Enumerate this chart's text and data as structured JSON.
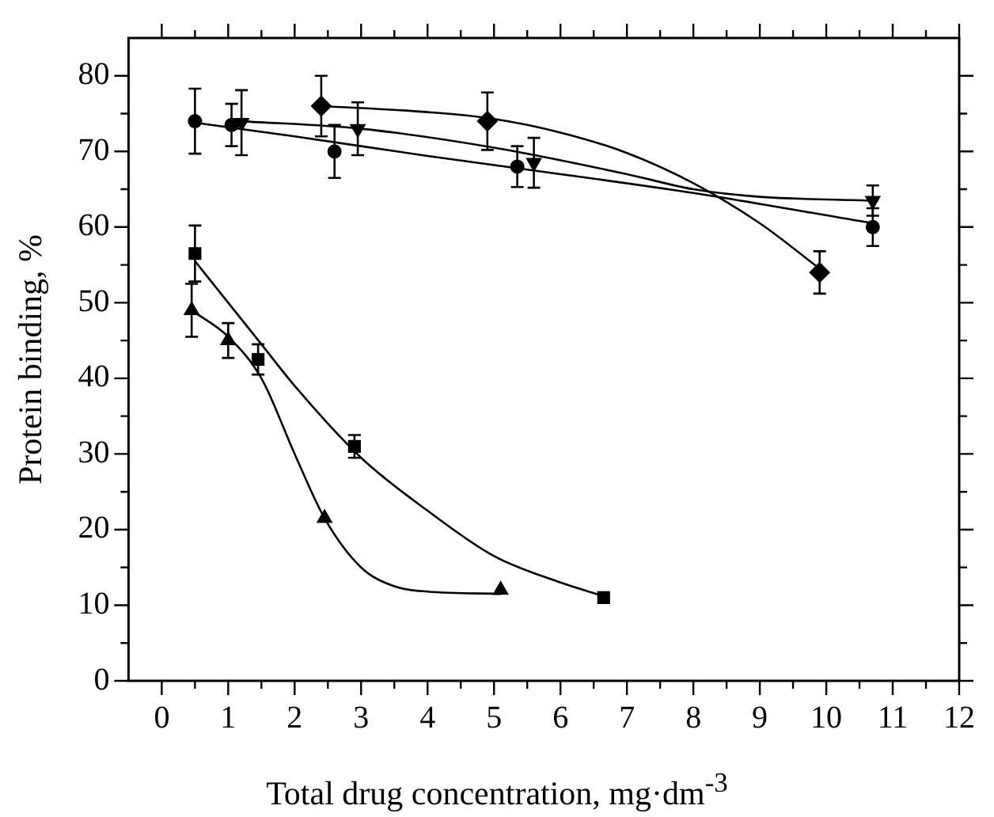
{
  "chart_data": {
    "type": "scatter",
    "xlabel": "Total drug concentration, mg·dm$^{-3}$",
    "ylabel": "Protein binding, %",
    "xlim": [
      -0.5,
      12
    ],
    "ylim": [
      0,
      85
    ],
    "xticks": [
      0,
      {
        "value": 0.5,
        "label": null
      },
      1,
      {
        "value": 1.5,
        "label": null
      },
      2,
      {
        "value": 2.5,
        "label": null
      },
      3,
      {
        "value": 3.5,
        "label": null
      },
      4,
      {
        "value": 4.5,
        "label": null
      },
      5,
      {
        "value": 5.5,
        "label": null
      },
      6,
      {
        "value": 6.5,
        "label": null
      },
      7,
      {
        "value": 7.5,
        "label": null
      },
      8,
      {
        "value": 8.5,
        "label": null
      },
      9,
      {
        "value": 9.5,
        "label": null
      },
      10,
      {
        "value": 10.5,
        "label": null
      },
      11,
      {
        "value": 11.5,
        "label": null
      },
      12
    ],
    "yticks": [
      0,
      {
        "value": 5,
        "label": null
      },
      10,
      {
        "value": 15,
        "label": null
      },
      20,
      {
        "value": 25,
        "label": null
      },
      30,
      {
        "value": 35,
        "label": null
      },
      40,
      {
        "value": 45,
        "label": null
      },
      50,
      {
        "value": 55,
        "label": null
      },
      60,
      {
        "value": 65,
        "label": null
      },
      70,
      {
        "value": 75,
        "label": null
      },
      80
    ],
    "grid": false,
    "legend": false,
    "series": [
      {
        "type": "scatter",
        "marker": "circle",
        "color": "#000000",
        "x": [
          0.5,
          1.05,
          2.6,
          5.35,
          10.7
        ],
        "values": [
          74,
          73.5,
          70,
          68,
          60
        ],
        "errors": [
          4.3,
          2.8,
          3.5,
          2.7,
          2.5
        ]
      },
      {
        "type": "scatter",
        "marker": "triangle-down",
        "color": "#000000",
        "x": [
          1.2,
          2.95,
          5.6,
          10.7
        ],
        "values": [
          73.8,
          73,
          68.5,
          63.5
        ],
        "errors": [
          4.3,
          3.5,
          3.3,
          2
        ]
      },
      {
        "type": "scatter",
        "marker": "diamond",
        "color": "#000000",
        "x": [
          2.4,
          4.9,
          9.9
        ],
        "values": [
          76,
          74,
          54
        ],
        "errors": [
          4,
          3.8,
          2.8
        ]
      },
      {
        "type": "scatter",
        "marker": "square",
        "color": "#000000",
        "x": [
          0.5,
          1.45,
          2.9,
          6.65
        ],
        "values": [
          56.5,
          42.5,
          31,
          11
        ],
        "errors": [
          3.7,
          2,
          1.5,
          null
        ]
      },
      {
        "type": "scatter",
        "marker": "triangle",
        "color": "#000000",
        "x": [
          0.45,
          1.0,
          2.45,
          5.1
        ],
        "values": [
          49,
          45,
          21.5,
          12
        ],
        "errors": [
          3.5,
          2.3,
          null,
          null
        ]
      },
      {
        "type": "line",
        "marker": "none",
        "color": "#000000",
        "x": [
          0.5,
          2,
          4,
          6,
          8,
          10.7
        ],
        "values": [
          73.8,
          72,
          69.4,
          67,
          64.5,
          60.5
        ]
      },
      {
        "type": "line",
        "marker": "none",
        "color": "#000000",
        "x": [
          1.2,
          3,
          5,
          7,
          8,
          9,
          10.7
        ],
        "values": [
          74,
          73,
          70.5,
          67,
          65,
          64,
          63.5
        ]
      },
      {
        "type": "line",
        "marker": "none",
        "color": "#000000",
        "x": [
          2.4,
          4,
          5,
          6,
          7,
          8,
          9,
          9.9
        ],
        "values": [
          76,
          75.2,
          74.3,
          72.5,
          69.8,
          65.8,
          60.5,
          54.5
        ]
      },
      {
        "type": "line",
        "marker": "none",
        "color": "#000000",
        "x": [
          0.5,
          1,
          1.5,
          2,
          3,
          4,
          5,
          6,
          6.65
        ],
        "values": [
          55.5,
          50,
          44.5,
          39,
          29.5,
          22.5,
          16.5,
          13,
          11.2
        ]
      },
      {
        "type": "line",
        "marker": "none",
        "color": "#000000",
        "x": [
          0.45,
          1,
          1.5,
          2,
          2.45,
          3,
          3.5,
          4,
          5.1
        ],
        "values": [
          49,
          45.5,
          40,
          30,
          21.5,
          15,
          12.5,
          11.8,
          11.5
        ]
      }
    ]
  }
}
